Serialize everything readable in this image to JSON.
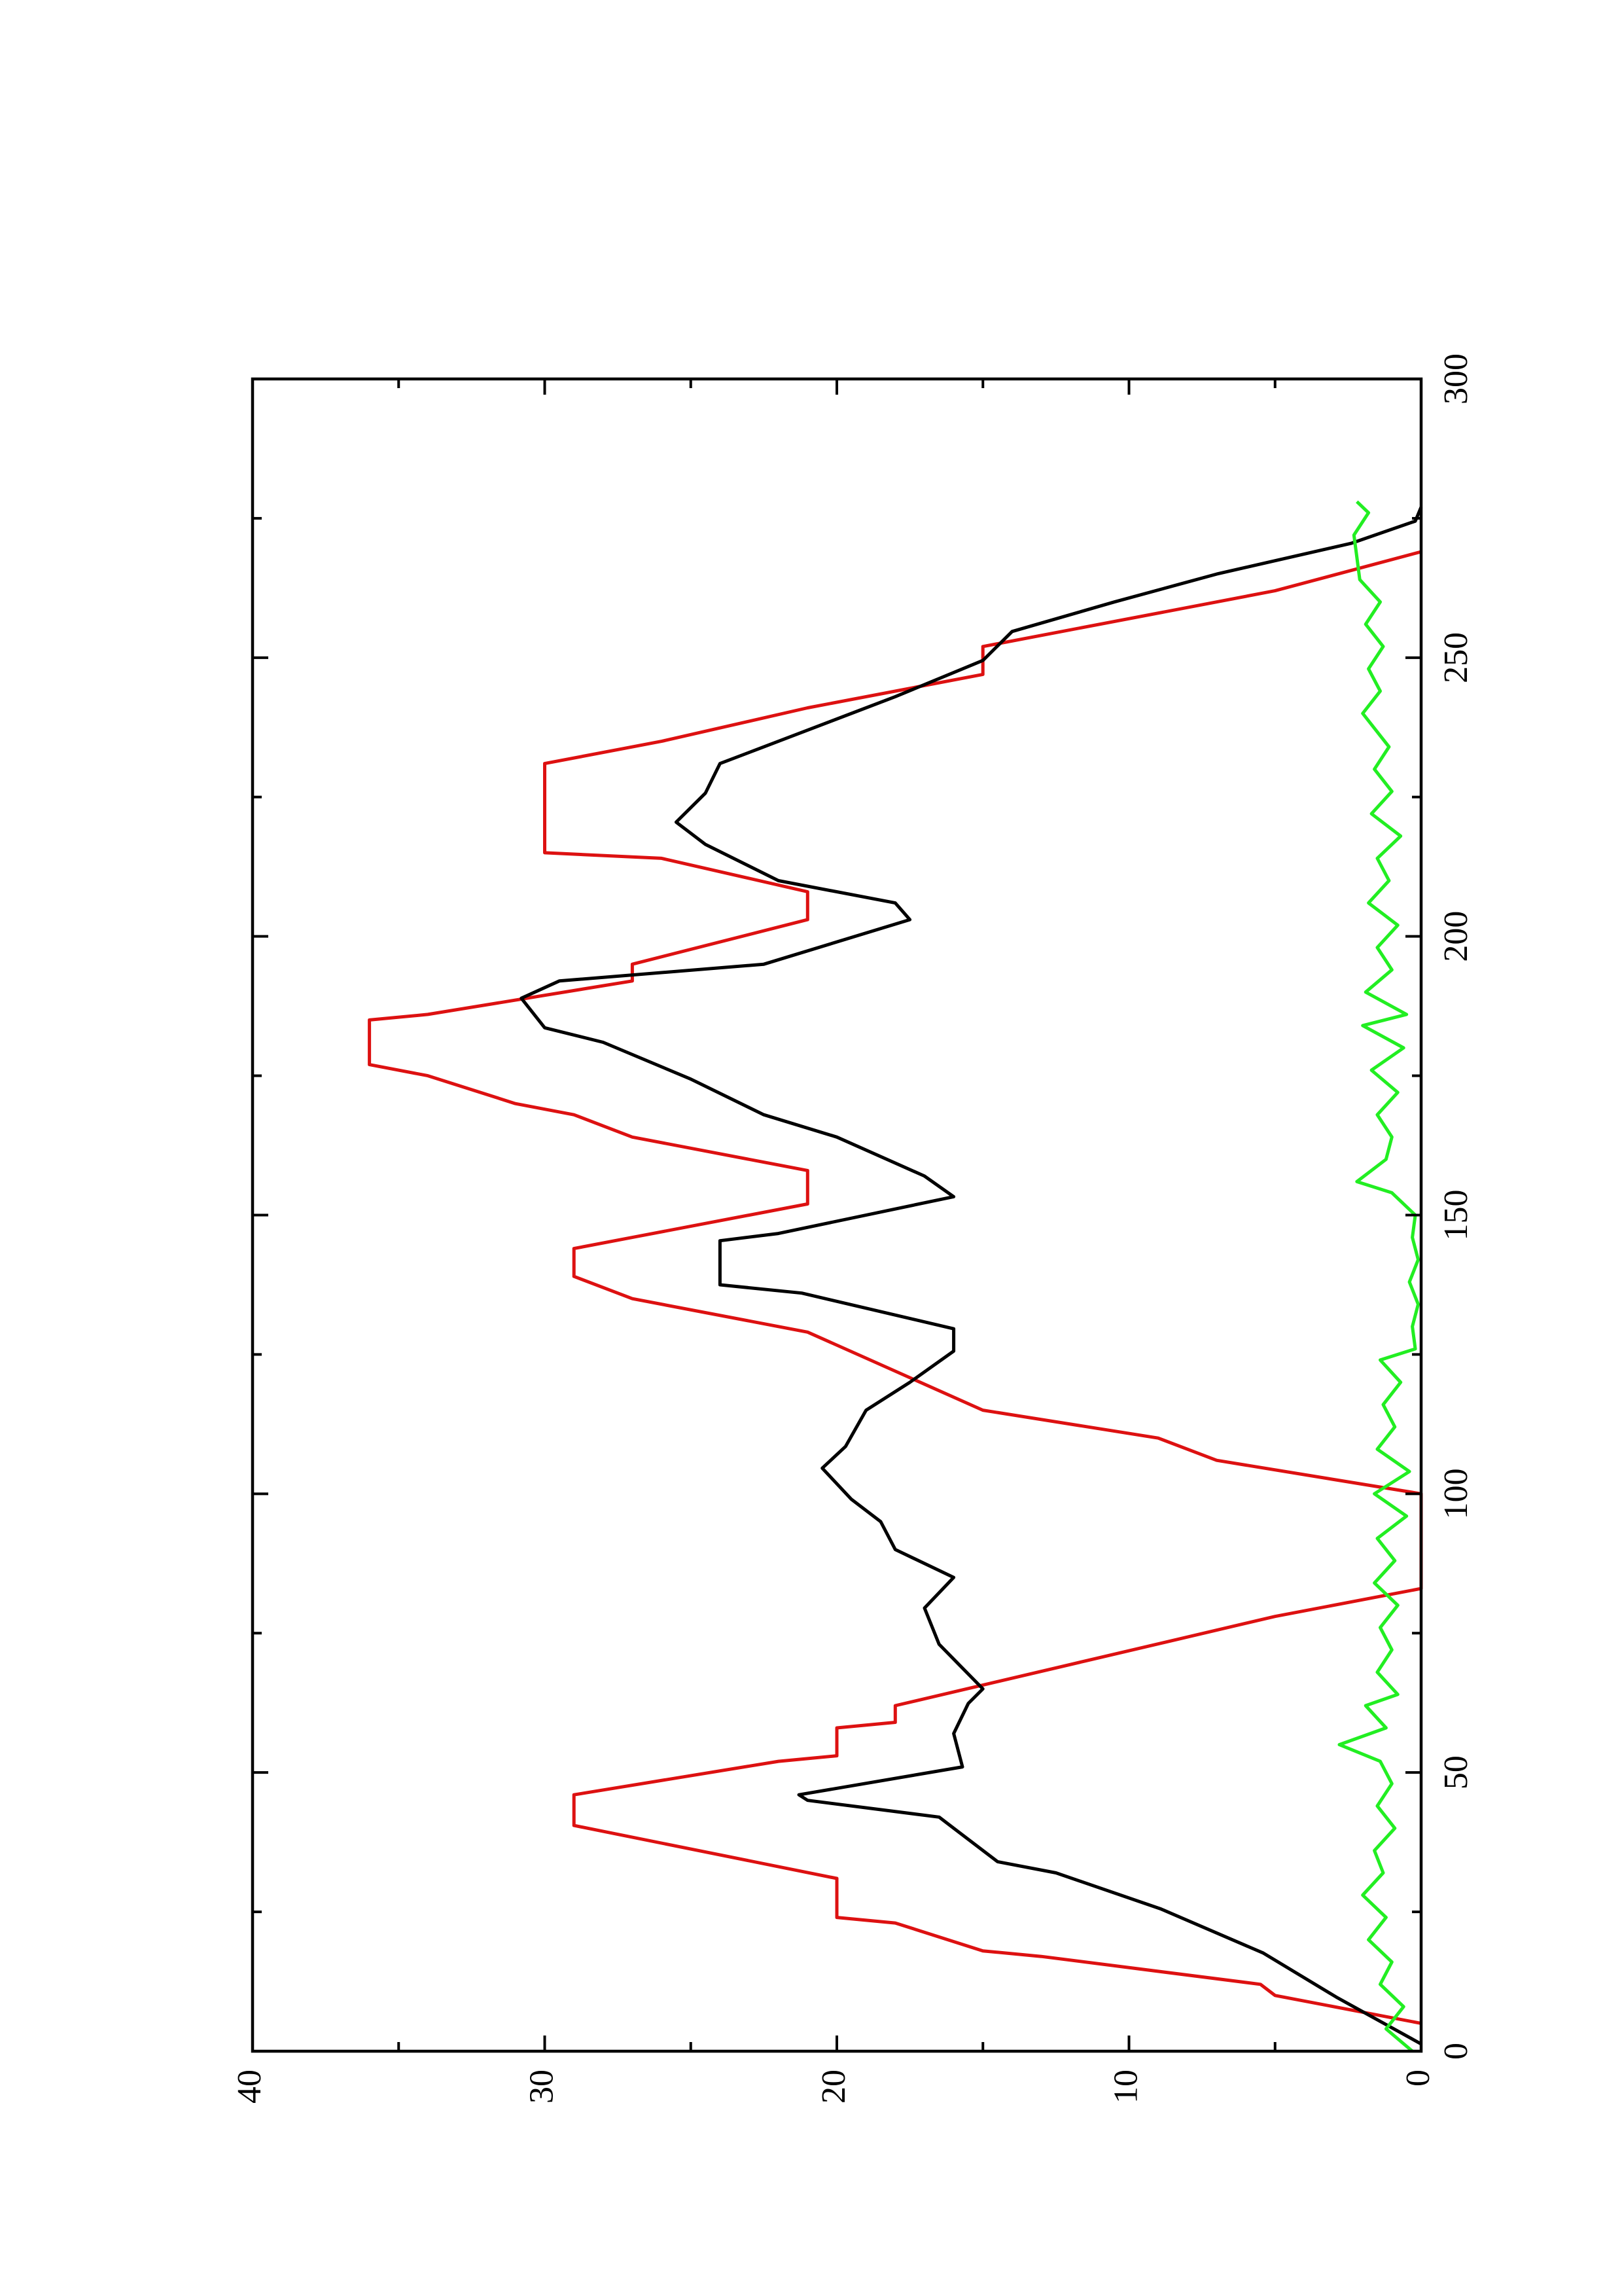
{
  "chart_data": {
    "type": "line",
    "xlim": [
      0,
      300
    ],
    "ylim": [
      0,
      40
    ],
    "xticks": [
      0,
      50,
      100,
      150,
      200,
      250,
      300
    ],
    "yticks": [
      0,
      10,
      20,
      30,
      40
    ],
    "xminorticks": [
      25,
      75,
      125,
      175,
      225,
      275
    ],
    "yminorticks": [
      5,
      15,
      25,
      35
    ],
    "series": [
      {
        "color": "#dd1111",
        "x": [
          5,
          10,
          12,
          17,
          18,
          23,
          24,
          31,
          40.5,
          46,
          52,
          53,
          58,
          59,
          62,
          78,
          83,
          100,
          106,
          110,
          115,
          129,
          135,
          139,
          144,
          146,
          152,
          158,
          164,
          168,
          170,
          175,
          177,
          185,
          186,
          192,
          195,
          203,
          208,
          214,
          215,
          231,
          235,
          241,
          247,
          252,
          260,
          262,
          269
        ],
        "values": [
          0,
          5,
          5.5,
          13,
          15,
          18,
          20,
          20,
          29,
          29,
          22,
          20,
          20,
          18,
          18,
          5,
          0,
          0,
          7,
          9,
          15,
          21,
          27,
          29,
          29,
          27,
          21,
          21,
          27,
          29,
          31,
          34,
          36,
          36,
          34,
          27,
          27,
          21,
          21,
          26,
          30,
          30,
          26,
          21,
          15,
          15,
          7,
          5,
          0
        ]
      },
      {
        "color": "#000000",
        "x": [
          1.3,
          9.7,
          17.6,
          25.5,
          32,
          34,
          42,
          45,
          46,
          51,
          57,
          62.4,
          65,
          73,
          79.5,
          85,
          90,
          95,
          99,
          104.6,
          108.5,
          115,
          120,
          125.6,
          129.6,
          136,
          137.5,
          145.4,
          146.7,
          153.3,
          157,
          164,
          168,
          174.4,
          181,
          183.6,
          188.9,
          192,
          195,
          203,
          206,
          210,
          216.5,
          220.5,
          225.7,
          231,
          236,
          240,
          243,
          249.5,
          254.7,
          260,
          265,
          270.5,
          274.5,
          277
        ],
        "values": [
          0,
          2.9,
          5.4,
          8.9,
          12.5,
          14.5,
          16.5,
          21,
          21.3,
          15.7,
          16,
          15.5,
          15,
          16.5,
          17,
          16,
          18,
          18.5,
          19.5,
          20.5,
          19.7,
          19,
          17.5,
          16,
          16,
          21.2,
          24,
          24,
          22,
          16,
          17,
          20,
          22.5,
          25,
          28,
          30,
          30.8,
          29.5,
          22.5,
          17.5,
          18,
          22,
          24.5,
          25.5,
          24.5,
          24,
          21.5,
          19.5,
          18,
          15,
          14,
          10.5,
          7,
          2.4,
          0.2,
          0
        ]
      },
      {
        "color": "#22ee22",
        "x": [
          0,
          4,
          8,
          12,
          16,
          20,
          24,
          28,
          32,
          36,
          40,
          44,
          48,
          52,
          55,
          58,
          62,
          64,
          68,
          72,
          76,
          80,
          84,
          88,
          92,
          96,
          100,
          104,
          108,
          112,
          116,
          120,
          124,
          126,
          130,
          134,
          138,
          142,
          146,
          150,
          154,
          156,
          160,
          164,
          168,
          172,
          176,
          180,
          184,
          186,
          190,
          194,
          198,
          202,
          206,
          210,
          214,
          218,
          222,
          226,
          230,
          234,
          240,
          244,
          248,
          252,
          256,
          260,
          264,
          268,
          272,
          276,
          278
        ],
        "values": [
          0.3,
          1.2,
          0.6,
          1.4,
          1.0,
          1.8,
          1.2,
          2.0,
          1.3,
          1.6,
          0.9,
          1.5,
          1.0,
          1.4,
          2.8,
          1.2,
          1.9,
          0.8,
          1.5,
          1.0,
          1.4,
          0.8,
          1.6,
          0.9,
          1.5,
          0.5,
          1.6,
          0.4,
          1.5,
          0.9,
          1.3,
          0.7,
          1.4,
          0.2,
          0.3,
          0.1,
          0.4,
          0.1,
          0.3,
          0.2,
          1.0,
          2.2,
          1.2,
          1.0,
          1.5,
          0.8,
          1.7,
          0.6,
          2.0,
          0.5,
          1.9,
          1.0,
          1.5,
          0.8,
          1.8,
          1.1,
          1.5,
          0.7,
          1.7,
          1.0,
          1.6,
          1.1,
          2.0,
          1.4,
          1.8,
          1.3,
          1.9,
          1.4,
          2.1,
          2.2,
          2.3,
          1.8,
          2.2
        ]
      }
    ]
  }
}
